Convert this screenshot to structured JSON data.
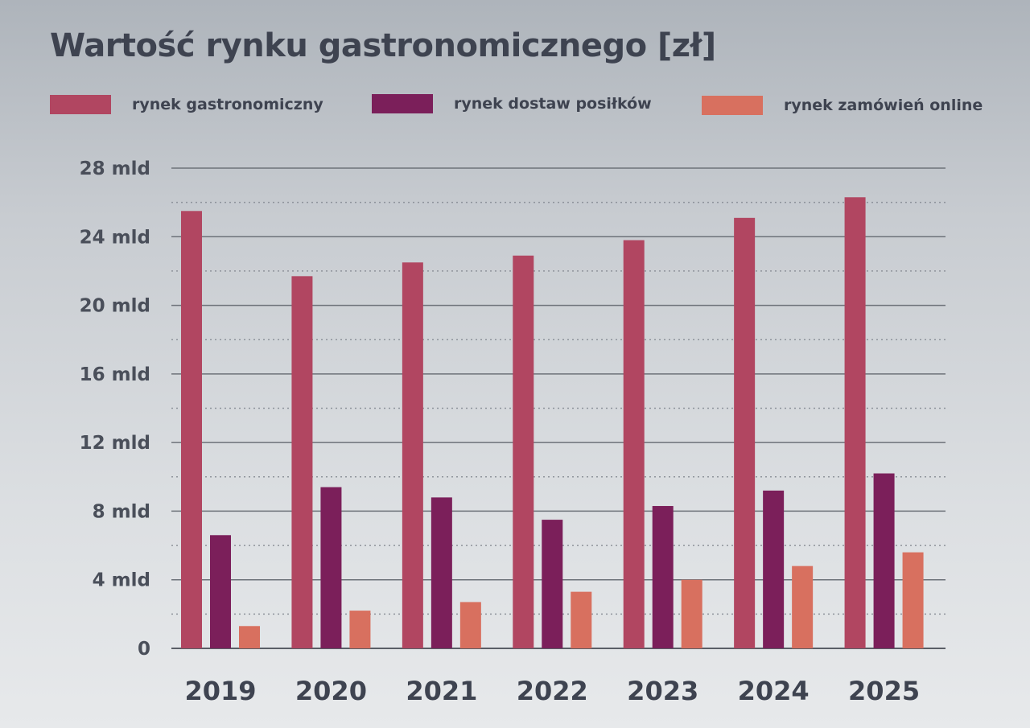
{
  "title": "Wartość rynku gastronomicznego [zł]",
  "legend": [
    {
      "name": "rynek gastronomiczny",
      "color": "#b14661"
    },
    {
      "name": "rynek dostaw posiłków",
      "color": "#7b1f5a"
    },
    {
      "name": "rynek zamówień online",
      "color": "#d8705f"
    }
  ],
  "chart_data": {
    "type": "bar",
    "title": "Wartość rynku gastronomicznego [zł]",
    "xlabel": "",
    "ylabel": "",
    "categories": [
      "2019",
      "2020",
      "2021",
      "2022",
      "2023",
      "2024",
      "2025"
    ],
    "series": [
      {
        "name": "rynek gastronomiczny",
        "color": "#b14661",
        "values": [
          25.5,
          21.7,
          22.5,
          22.9,
          23.8,
          25.1,
          26.3
        ]
      },
      {
        "name": "rynek dostaw posiłków",
        "color": "#7b1f5a",
        "values": [
          6.6,
          9.4,
          8.8,
          7.5,
          8.3,
          9.2,
          10.2
        ]
      },
      {
        "name": "rynek zamówień online",
        "color": "#d8705f",
        "values": [
          1.3,
          2.2,
          2.7,
          3.3,
          4.0,
          4.8,
          5.6
        ]
      }
    ],
    "ylim": [
      0,
      28
    ],
    "yticks": [
      0,
      4,
      8,
      12,
      16,
      20,
      24,
      28
    ],
    "ytick_labels": [
      "0",
      "4 mld",
      "8 mld",
      "12 mld",
      "16 mld",
      "20 mld",
      "24 mld",
      "28 mld"
    ],
    "grid": true,
    "legend_position": "top"
  }
}
